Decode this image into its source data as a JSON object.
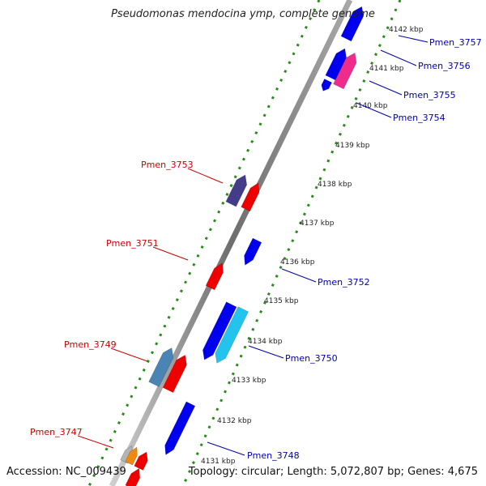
{
  "title": "Pseudomonas mendocina ymp, complete genome",
  "footer": {
    "accession": "Accession: NC_009439",
    "topology": "Topology: circular; Length: 5,072,807 bp; Genes: 4,675"
  },
  "ticks": [
    "4131 kbp",
    "4132 kbp",
    "4133 kbp",
    "4134 kbp",
    "4135 kbp",
    "4136 kbp",
    "4137 kbp",
    "4138 kbp",
    "4139 kbp",
    "4140 kbp",
    "4141 kbp",
    "4142 kbp"
  ],
  "genes_left": [
    "Pmen_3747",
    "Pmen_3749",
    "Pmen_3751",
    "Pmen_3753"
  ],
  "genes_right": [
    "Pmen_3748",
    "Pmen_3750",
    "Pmen_3752",
    "Pmen_3754",
    "Pmen_3755",
    "Pmen_3756",
    "Pmen_3757"
  ],
  "colors": {
    "left_label": "#cc0000",
    "right_label": "#0000aa",
    "backbone": "#8a8a8a",
    "tick_dots": "#2a8a1a",
    "blue": "#0000ee",
    "red": "#ee0000",
    "cyan": "#22c4ee",
    "steel": "#4a84b4",
    "purple": "#443c88",
    "magenta": "#ee2c8c",
    "orange": "#ee8a10",
    "gray": "#b4b4b4"
  }
}
